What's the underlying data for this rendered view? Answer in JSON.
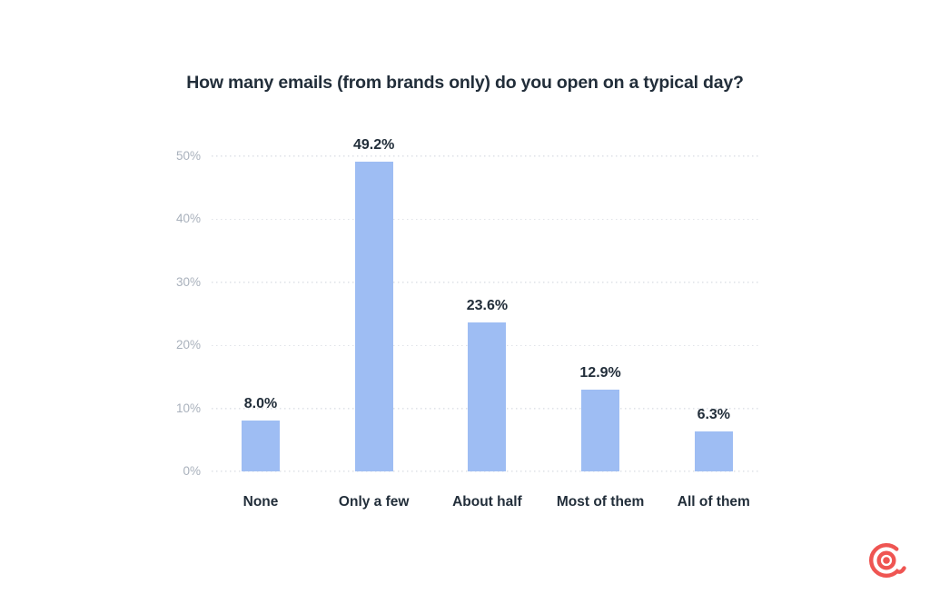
{
  "title": "How many emails (from brands only) do you open on a typical day?",
  "chart_data": {
    "type": "bar",
    "title": "How many emails (from brands only) do you open on a typical day?",
    "categories": [
      "None",
      "Only a few",
      "About half",
      "Most of them",
      "All of them"
    ],
    "values": [
      8.0,
      49.2,
      23.6,
      12.9,
      6.3
    ],
    "data_labels": [
      "8.0%",
      "49.2%",
      "23.6%",
      "12.9%",
      "6.3%"
    ],
    "xlabel": "",
    "ylabel": "",
    "ylim": [
      0,
      50
    ],
    "yticks": [
      "0%",
      "10%",
      "20%",
      "30%",
      "40%",
      "50%"
    ],
    "grid": "horizontal-dotted",
    "legend": "none"
  },
  "colors": {
    "bar": "#9ebdf3",
    "value_label_text": "#222e3a",
    "category_label_text": "#222e3a",
    "title_text": "#222e3a",
    "axis_tick_text": "#a9b1bc",
    "gridline": "#e0e3e8",
    "logo": "#ef5552",
    "background": "#ffffff"
  },
  "branding": {
    "logo_name": "omnisend-at-spiral-logo"
  }
}
